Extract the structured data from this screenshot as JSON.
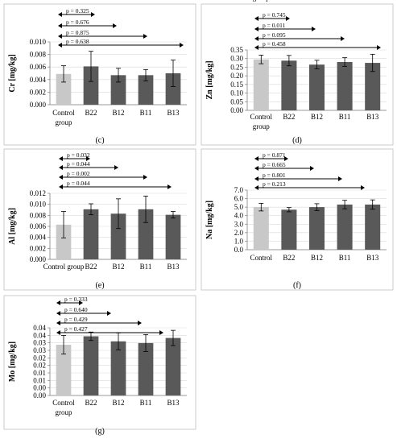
{
  "chart_data": [
    {
      "type": "bar",
      "panel_label": "(c)",
      "ylabel": "Cr [mg/kg]",
      "ylim": [
        0,
        0.01
      ],
      "yticks": [
        "0.000",
        "0.002",
        "0.004",
        "0.006",
        "0.008",
        "0.010"
      ],
      "categories": [
        [
          "Control",
          "group"
        ],
        [
          "B22"
        ],
        [
          "B12"
        ],
        [
          "B11"
        ],
        [
          "B13"
        ]
      ],
      "values": [
        0.0049,
        0.0061,
        0.0047,
        0.0047,
        0.005
      ],
      "errors": [
        0.0013,
        0.0024,
        0.0011,
        0.0009,
        0.0021
      ],
      "p_values": [
        "p = 0.325",
        "p = 0.676",
        "p = 0.875",
        "p = 0.638"
      ]
    },
    {
      "type": "bar",
      "panel_label": "(d)",
      "ylabel": "Zn [mg/kg]",
      "ylim": [
        0,
        0.35
      ],
      "yticks": [
        "0.00",
        "0.05",
        "0.10",
        "0.15",
        "0.20",
        "0.25",
        "0.30",
        "0.35"
      ],
      "categories": [
        [
          "Control",
          "group"
        ],
        [
          "B22"
        ],
        [
          "B12"
        ],
        [
          "B11"
        ],
        [
          "B13"
        ]
      ],
      "values": [
        0.295,
        0.288,
        0.265,
        0.28,
        0.275
      ],
      "errors": [
        0.025,
        0.03,
        0.025,
        0.025,
        0.05
      ],
      "p_values": [
        "p = 0.745",
        "p = 0.011",
        "p = 0.095",
        "p = 0.458"
      ]
    },
    {
      "type": "bar",
      "panel_label": "(e)",
      "ylabel": "Al [mg/kg]",
      "ylim": [
        0,
        0.012
      ],
      "yticks": [
        "0.000",
        "0.002",
        "0.004",
        "0.006",
        "0.008",
        "0.010",
        "0.012"
      ],
      "categories": [
        [
          "Control group"
        ],
        [
          "B22"
        ],
        [
          "B12"
        ],
        [
          "B11"
        ],
        [
          "B13"
        ]
      ],
      "values": [
        0.0063,
        0.0091,
        0.0083,
        0.0091,
        0.0081
      ],
      "errors": [
        0.0024,
        0.001,
        0.0027,
        0.0024,
        0.0006
      ],
      "p_values": [
        "p = 0.032",
        "p = 0.044",
        "p = 0.002",
        "p = 0.044"
      ]
    },
    {
      "type": "bar",
      "panel_label": "(f)",
      "ylabel": "Na [mg/kg]",
      "ylim": [
        0,
        7.0
      ],
      "yticks": [
        "0.0",
        "1.0",
        "2.0",
        "3.0",
        "4.0",
        "5.0",
        "6.0",
        "7.0"
      ],
      "categories": [
        [
          "Control",
          "group"
        ],
        [
          "B22"
        ],
        [
          "B12"
        ],
        [
          "B11"
        ],
        [
          "B13"
        ]
      ],
      "values": [
        5.0,
        4.7,
        5.0,
        5.3,
        5.3
      ],
      "errors": [
        0.45,
        0.25,
        0.4,
        0.5,
        0.55
      ],
      "p_values": [
        "p = 0.871",
        "p = 0.665",
        "p = 0.801",
        "p = 0.213"
      ]
    },
    {
      "type": "bar",
      "panel_label": "(g)",
      "ylabel": "Mo [mg/kg]",
      "ylim": [
        0,
        0.04
      ],
      "yticks": [
        "0.00",
        "0.00",
        "0.01",
        "0.01",
        "0.02",
        "0.02",
        "0.03",
        "0.03",
        "0.04",
        "0.04"
      ],
      "categories": [
        [
          "Control",
          "group"
        ],
        [
          "B22"
        ],
        [
          "B12"
        ],
        [
          "B11"
        ],
        [
          "B13"
        ]
      ],
      "values": [
        0.03,
        0.035,
        0.032,
        0.031,
        0.034
      ],
      "errors": [
        0.0055,
        0.0025,
        0.005,
        0.005,
        0.0045
      ],
      "p_values": [
        "p = 0.333",
        "p = 0.640",
        "p = 0.429",
        "p = 0.427"
      ]
    }
  ],
  "colors": {
    "control": "#c8c8c8",
    "treatment": "#595959"
  }
}
